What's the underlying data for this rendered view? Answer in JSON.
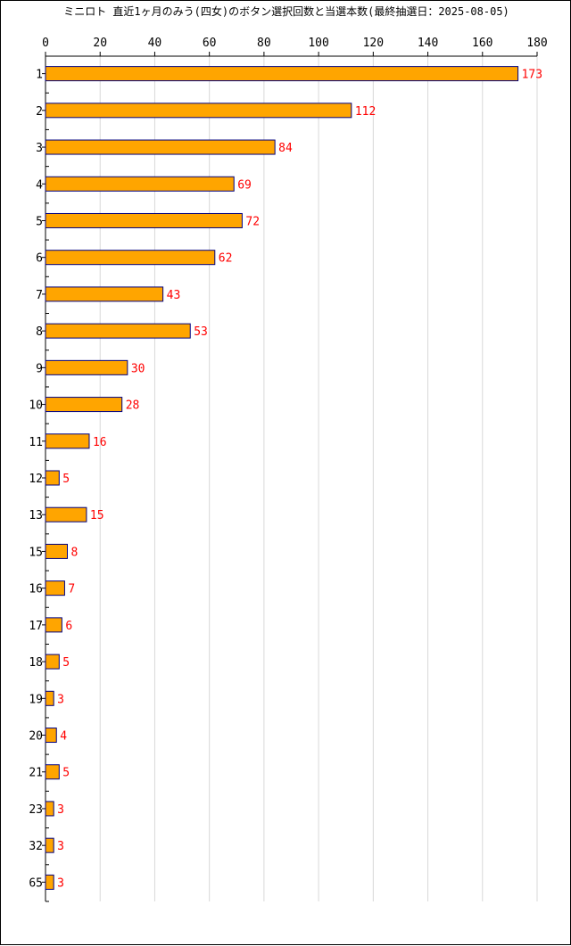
{
  "chart_data": {
    "type": "bar",
    "orientation": "horizontal",
    "title": "ミニロト 直近1ヶ月のみう(四女)のボタン選択回数と当選本数(最終抽選日：2025-08-05)",
    "categories": [
      "1",
      "2",
      "3",
      "4",
      "5",
      "6",
      "7",
      "8",
      "9",
      "10",
      "11",
      "12",
      "13",
      "15",
      "16",
      "17",
      "18",
      "19",
      "20",
      "21",
      "23",
      "32",
      "65"
    ],
    "values": [
      173,
      112,
      84,
      69,
      72,
      62,
      43,
      53,
      30,
      28,
      16,
      5,
      15,
      8,
      7,
      6,
      5,
      3,
      4,
      5,
      3,
      3,
      3
    ],
    "xticks": [
      0,
      20,
      40,
      60,
      80,
      100,
      120,
      140,
      160,
      180
    ],
    "xlim": [
      0,
      180
    ],
    "xaxis_position": "top",
    "grid": true,
    "bar_color": "#FFA500",
    "bar_edge_color": "#000080",
    "value_label_color": "#FF0000"
  }
}
